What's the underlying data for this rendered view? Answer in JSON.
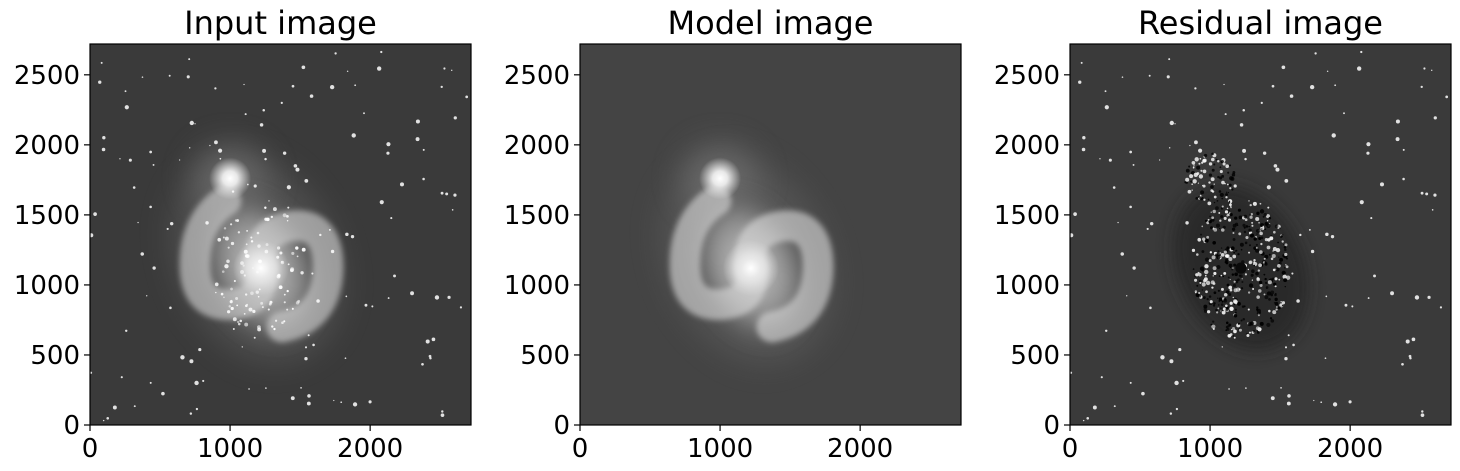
{
  "figure": {
    "panels": [
      {
        "title": "Input image",
        "kind": "input"
      },
      {
        "title": "Model image",
        "kind": "model"
      },
      {
        "title": "Residual image",
        "kind": "residual"
      }
    ],
    "axes": {
      "xlim": [
        0,
        2720
      ],
      "ylim": [
        0,
        2720
      ],
      "xticks": [
        0,
        1000,
        2000
      ],
      "yticks": [
        0,
        500,
        1000,
        1500,
        2000,
        2500
      ]
    },
    "colors": {
      "background_sky": "#3a3a3a",
      "model_background": "#444444",
      "frame": "#000000"
    },
    "colormap": "grayscale"
  }
}
